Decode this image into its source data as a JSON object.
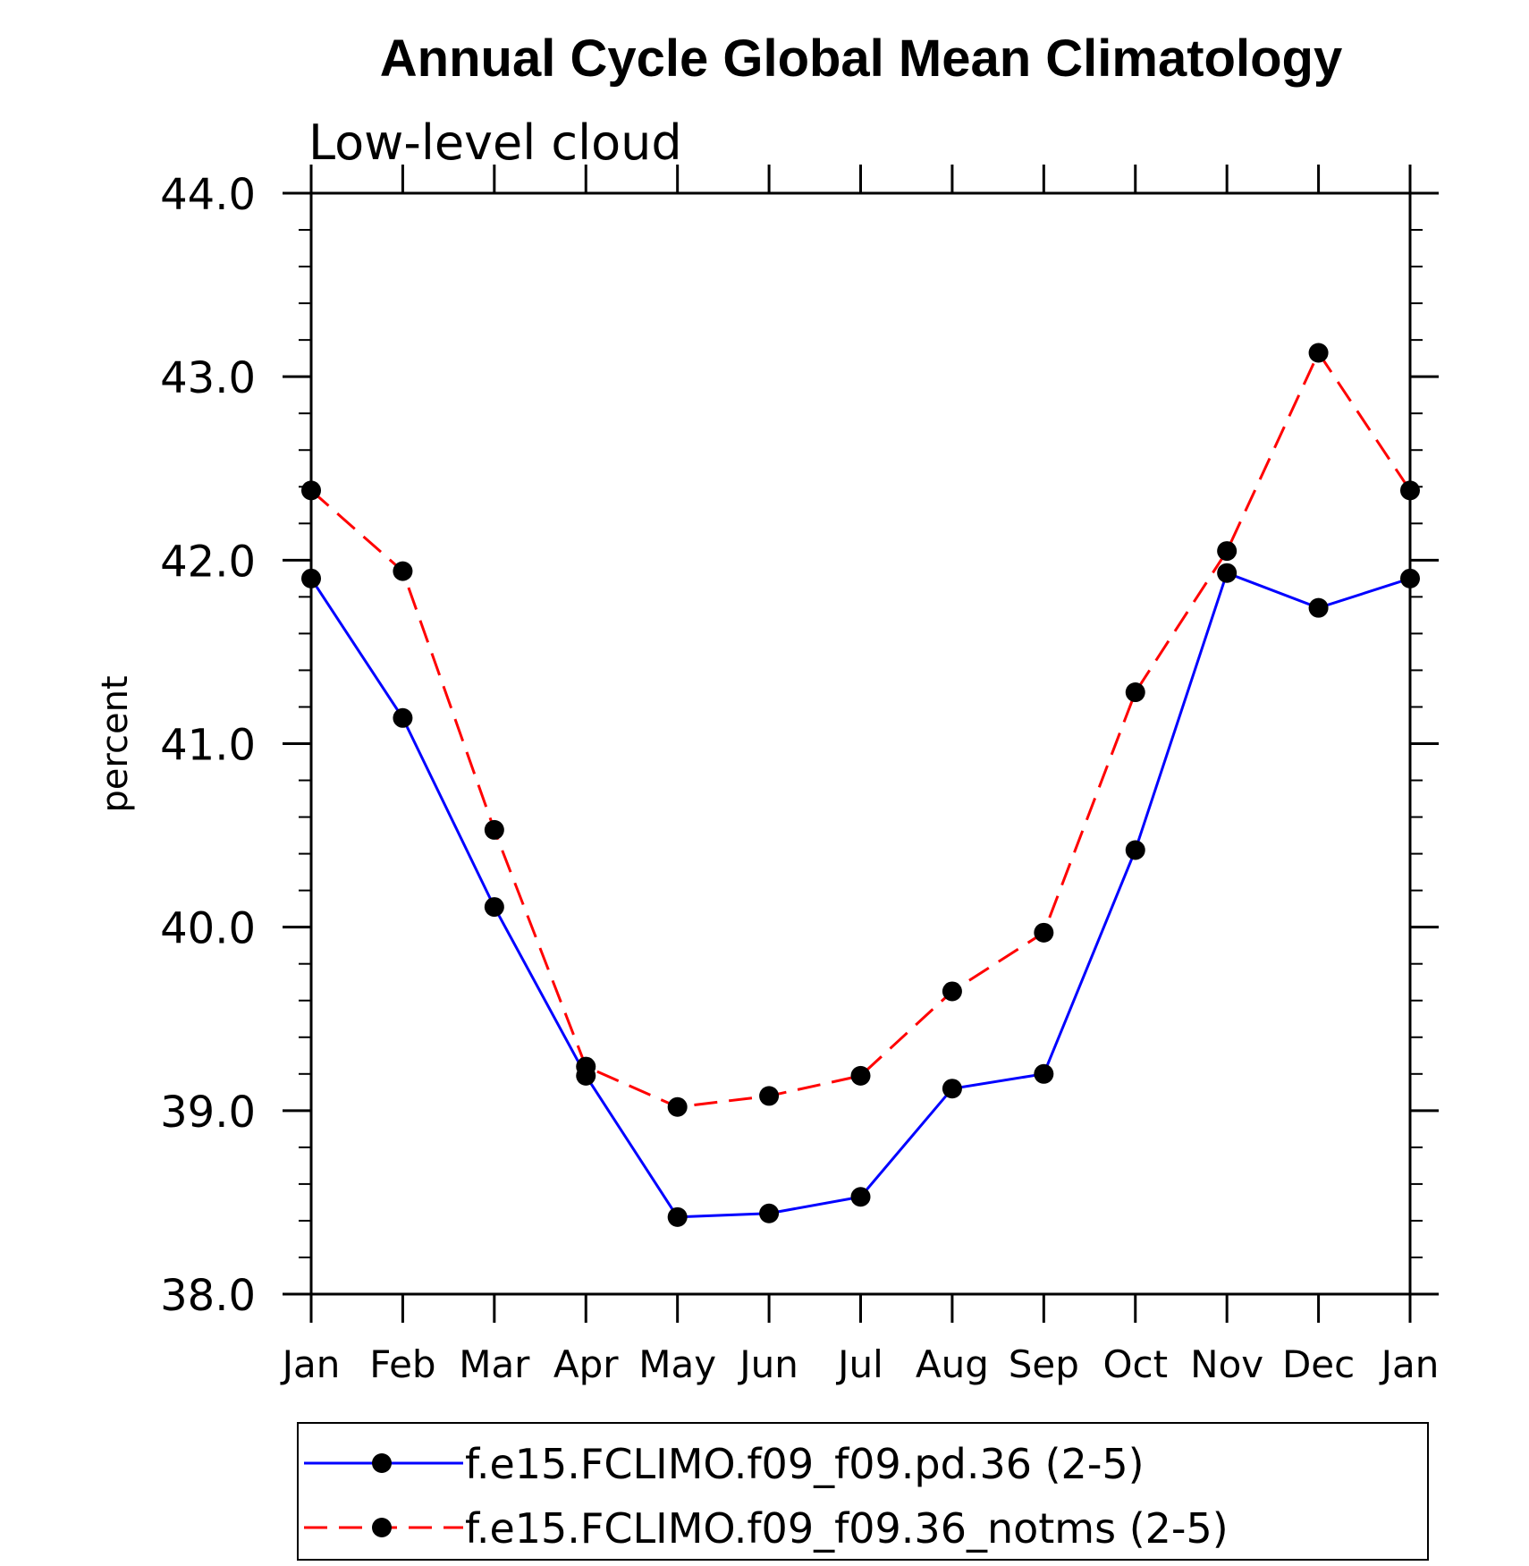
{
  "chart_data": {
    "type": "line",
    "title": "Annual Cycle Global Mean Climatology",
    "subtitle": "Low-level cloud",
    "ylabel": "percent",
    "xlabel": "",
    "categories": [
      "Jan",
      "Feb",
      "Mar",
      "Apr",
      "May",
      "Jun",
      "Jul",
      "Aug",
      "Sep",
      "Oct",
      "Nov",
      "Dec",
      "Jan"
    ],
    "ylim": [
      38.0,
      44.0
    ],
    "yticks": [
      "38.0",
      "39.0",
      "40.0",
      "41.0",
      "42.0",
      "43.0",
      "44.0"
    ],
    "grid": false,
    "legend_position": "bottom",
    "series": [
      {
        "name": "f.e15.FCLIMO.f09_f09.pd.36 (2-5)",
        "color": "#0000ff",
        "dash": "solid",
        "marker": "filled-circle",
        "values": [
          41.9,
          41.14,
          40.11,
          39.19,
          38.42,
          38.44,
          38.53,
          39.12,
          39.2,
          40.42,
          41.93,
          41.74,
          41.9
        ]
      },
      {
        "name": "f.e15.FCLIMO.f09_f09.36_notms (2-5)",
        "color": "#ff0000",
        "dash": "dashed",
        "marker": "filled-circle",
        "values": [
          42.38,
          41.94,
          40.53,
          39.24,
          39.02,
          39.08,
          39.19,
          39.65,
          39.97,
          41.28,
          42.05,
          43.13,
          42.38
        ]
      }
    ]
  }
}
